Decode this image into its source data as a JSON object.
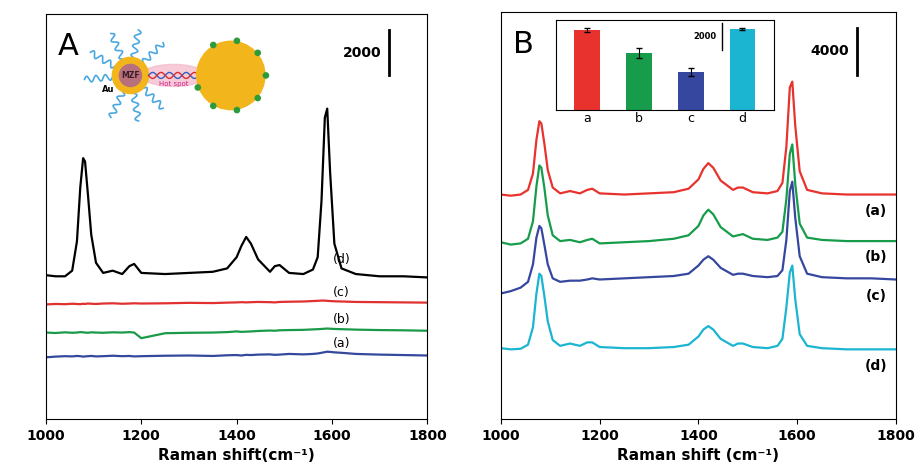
{
  "chart_data": [
    {
      "type": "line",
      "title": "A",
      "x_label": "Raman shift(cm⁻¹)",
      "x": [
        1000,
        1020,
        1040,
        1055,
        1065,
        1072,
        1078,
        1082,
        1088,
        1095,
        1105,
        1120,
        1140,
        1160,
        1175,
        1185,
        1200,
        1250,
        1300,
        1350,
        1380,
        1400,
        1410,
        1420,
        1430,
        1445,
        1470,
        1480,
        1490,
        1510,
        1540,
        1560,
        1570,
        1578,
        1585,
        1590,
        1596,
        1605,
        1620,
        1650,
        1700,
        1750,
        1800
      ],
      "xlim": [
        1000,
        1800
      ],
      "xticks": [
        1000,
        1200,
        1400,
        1600,
        1800
      ],
      "ylim": [
        0,
        18000
      ],
      "tick_labels": "x",
      "scale_bar": 2000,
      "annotations": [
        "Au",
        "MZF",
        "Hot spot"
      ],
      "series": [
        {
          "name": "(a)",
          "color": "#34489c",
          "values": [
            2750,
            2780,
            2800,
            2790,
            2810,
            2800,
            2780,
            2790,
            2800,
            2810,
            2790,
            2800,
            2820,
            2800,
            2810,
            2790,
            2800,
            2820,
            2830,
            2810,
            2840,
            2850,
            2830,
            2860,
            2850,
            2870,
            2880,
            2860,
            2870,
            2900,
            2880,
            2900,
            2920,
            2950,
            2980,
            3000,
            2990,
            2970,
            2950,
            2900,
            2870,
            2850,
            2830
          ]
        },
        {
          "name": "(b)",
          "color": "#1a9a48",
          "values": [
            3850,
            3830,
            3860,
            3840,
            3850,
            3870,
            3860,
            3850,
            3840,
            3860,
            3850,
            3840,
            3860,
            3850,
            3870,
            3850,
            3600,
            3820,
            3840,
            3850,
            3870,
            3900,
            3880,
            3890,
            3900,
            3920,
            3940,
            3930,
            3950,
            3960,
            3970,
            3990,
            4000,
            4010,
            4020,
            4030,
            4020,
            4010,
            4000,
            3980,
            3960,
            3950,
            3930
          ]
        },
        {
          "name": "(c)",
          "color": "#e0302f",
          "values": [
            5100,
            5120,
            5110,
            5130,
            5120,
            5110,
            5130,
            5120,
            5140,
            5130,
            5120,
            5140,
            5150,
            5130,
            5140,
            5150,
            5140,
            5150,
            5170,
            5160,
            5180,
            5190,
            5200,
            5190,
            5200,
            5210,
            5200,
            5190,
            5210,
            5220,
            5230,
            5250,
            5260,
            5270,
            5270,
            5260,
            5250,
            5240,
            5230,
            5210,
            5200,
            5190,
            5180
          ]
        },
        {
          "name": "(d)",
          "color": "#000000",
          "values": [
            6400,
            6350,
            6350,
            6600,
            7900,
            10300,
            11600,
            11450,
            10000,
            8200,
            6950,
            6500,
            6600,
            6450,
            6800,
            6900,
            6500,
            6450,
            6500,
            6550,
            6700,
            7200,
            7700,
            8100,
            7800,
            7100,
            6550,
            6800,
            6850,
            6500,
            6450,
            6650,
            7200,
            9700,
            13400,
            13800,
            11000,
            7800,
            6700,
            6450,
            6350,
            6350,
            6300
          ]
        }
      ]
    },
    {
      "type": "line",
      "title": "B",
      "x_label": "Raman shift (cm⁻¹)",
      "x": [
        1000,
        1020,
        1040,
        1055,
        1065,
        1072,
        1078,
        1082,
        1088,
        1095,
        1105,
        1120,
        1140,
        1160,
        1175,
        1185,
        1200,
        1250,
        1300,
        1350,
        1380,
        1400,
        1410,
        1420,
        1430,
        1445,
        1470,
        1480,
        1490,
        1510,
        1540,
        1560,
        1570,
        1578,
        1585,
        1590,
        1596,
        1605,
        1620,
        1650,
        1700,
        1750,
        1800
      ],
      "xlim": [
        1000,
        1800
      ],
      "xticks": [
        1000,
        1200,
        1400,
        1600,
        1800
      ],
      "ylim": [
        0,
        35000
      ],
      "tick_labels": "x",
      "scale_bar": 4000,
      "series": [
        {
          "name": "(a)",
          "color": "#e8322d",
          "values": [
            19300,
            19200,
            19300,
            19700,
            21100,
            24000,
            25600,
            25400,
            23700,
            21400,
            19900,
            19400,
            19600,
            19400,
            19700,
            19800,
            19400,
            19300,
            19400,
            19500,
            19800,
            20600,
            21500,
            22000,
            21600,
            20500,
            19700,
            19900,
            19900,
            19500,
            19400,
            19600,
            20300,
            23400,
            28500,
            29000,
            25200,
            21300,
            19700,
            19400,
            19300,
            19300,
            19300
          ]
        },
        {
          "name": "(b)",
          "color": "#169c4a",
          "values": [
            15200,
            15000,
            15100,
            15500,
            17000,
            20000,
            21800,
            21600,
            19900,
            17500,
            15800,
            15300,
            15400,
            15200,
            15400,
            15500,
            15100,
            15200,
            15300,
            15500,
            15800,
            16600,
            17500,
            18000,
            17600,
            16500,
            15700,
            15800,
            15900,
            15500,
            15400,
            15600,
            16100,
            18900,
            22800,
            23600,
            20200,
            16800,
            15600,
            15400,
            15300,
            15300,
            15300
          ]
        },
        {
          "name": "(c)",
          "color": "#35479e",
          "values": [
            10800,
            11000,
            11300,
            11800,
            13300,
            15600,
            16600,
            16400,
            15000,
            13300,
            12100,
            11800,
            11900,
            11900,
            12000,
            12100,
            12000,
            12100,
            12200,
            12300,
            12500,
            13200,
            13700,
            14000,
            13700,
            13000,
            12400,
            12500,
            12500,
            12300,
            12200,
            12300,
            12800,
            15400,
            19600,
            20400,
            17300,
            14000,
            12500,
            12200,
            12100,
            12100,
            12000
          ]
        },
        {
          "name": "(d)",
          "color": "#1bb5d2",
          "values": [
            6100,
            6000,
            6050,
            6400,
            7900,
            10800,
            12500,
            12300,
            10600,
            8400,
            6800,
            6300,
            6500,
            6300,
            6600,
            6600,
            6200,
            6100,
            6100,
            6200,
            6400,
            7100,
            7700,
            8000,
            7700,
            6900,
            6300,
            6500,
            6500,
            6200,
            6100,
            6300,
            6900,
            9600,
            12600,
            13200,
            10300,
            7300,
            6300,
            6100,
            6000,
            6000,
            6000
          ]
        }
      ]
    },
    {
      "type": "bar",
      "categories": [
        "a",
        "b",
        "c",
        "d"
      ],
      "values": [
        5800,
        4100,
        2700,
        5850
      ],
      "errors": [
        150,
        350,
        300,
        100
      ],
      "colors": [
        "#e8322d",
        "#169c4a",
        "#35479e",
        "#1bb5d2"
      ],
      "ylim": [
        0,
        6500
      ],
      "tick_labels": "x",
      "scale_bar": 2000
    }
  ]
}
